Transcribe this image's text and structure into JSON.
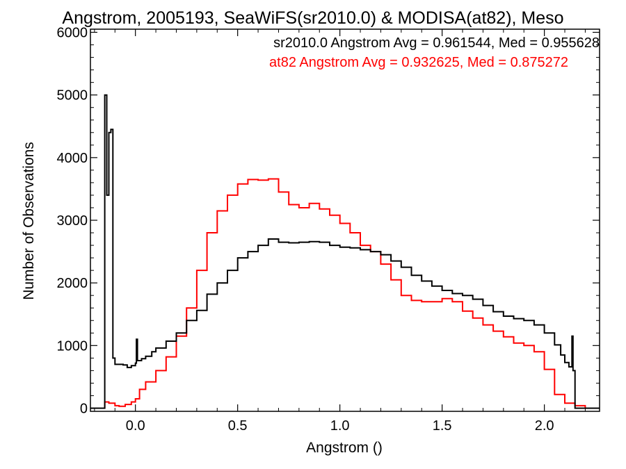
{
  "chart_data": {
    "type": "line",
    "title": "Angstrom, 2005193, SeaWiFS(sr2010.0) & MODISA(at82), Meso",
    "xlabel": "Angstrom ()",
    "ylabel": "Number of Observations",
    "xlim": [
      -0.22,
      2.27
    ],
    "ylim": [
      -50,
      6050
    ],
    "x_ticks": [
      "0.0",
      "0.5",
      "1.0",
      "1.5",
      "2.0"
    ],
    "x_tick_values": [
      0.0,
      0.5,
      1.0,
      1.5,
      2.0
    ],
    "y_ticks": [
      "0",
      "1000",
      "2000",
      "3000",
      "4000",
      "5000",
      "6000"
    ],
    "y_tick_values": [
      0,
      1000,
      2000,
      3000,
      4000,
      5000,
      6000
    ],
    "grid": false,
    "annotations": [
      {
        "text": "sr2010.0 Angstrom Avg = 0.961544, Med = 0.955628",
        "color": "#000000"
      },
      {
        "text": "at82 Angstrom Avg = 0.932625, Med = 0.875272",
        "color": "#ff0000"
      }
    ],
    "series": [
      {
        "color": "#000000",
        "points": [
          [
            -0.22,
            0
          ],
          [
            -0.15,
            0
          ],
          [
            -0.15,
            5000
          ],
          [
            -0.14,
            3400
          ],
          [
            -0.13,
            4400
          ],
          [
            -0.12,
            4450
          ],
          [
            -0.11,
            800
          ],
          [
            -0.1,
            700
          ],
          [
            -0.08,
            700
          ],
          [
            -0.06,
            690
          ],
          [
            -0.04,
            650
          ],
          [
            -0.02,
            680
          ],
          [
            0.0,
            720
          ],
          [
            0.005,
            1100
          ],
          [
            0.01,
            760
          ],
          [
            0.03,
            790
          ],
          [
            0.05,
            830
          ],
          [
            0.08,
            900
          ],
          [
            0.1,
            960
          ],
          [
            0.15,
            1070
          ],
          [
            0.2,
            1200
          ],
          [
            0.25,
            1400
          ],
          [
            0.3,
            1560
          ],
          [
            0.35,
            1820
          ],
          [
            0.4,
            2000
          ],
          [
            0.45,
            2200
          ],
          [
            0.5,
            2400
          ],
          [
            0.55,
            2500
          ],
          [
            0.6,
            2600
          ],
          [
            0.65,
            2700
          ],
          [
            0.7,
            2650
          ],
          [
            0.75,
            2640
          ],
          [
            0.8,
            2650
          ],
          [
            0.85,
            2660
          ],
          [
            0.9,
            2650
          ],
          [
            0.95,
            2600
          ],
          [
            1.0,
            2570
          ],
          [
            1.05,
            2560
          ],
          [
            1.1,
            2530
          ],
          [
            1.15,
            2500
          ],
          [
            1.2,
            2450
          ],
          [
            1.25,
            2350
          ],
          [
            1.3,
            2250
          ],
          [
            1.35,
            2120
          ],
          [
            1.4,
            2030
          ],
          [
            1.45,
            1950
          ],
          [
            1.5,
            1880
          ],
          [
            1.55,
            1830
          ],
          [
            1.6,
            1800
          ],
          [
            1.65,
            1740
          ],
          [
            1.7,
            1640
          ],
          [
            1.75,
            1540
          ],
          [
            1.8,
            1470
          ],
          [
            1.85,
            1430
          ],
          [
            1.9,
            1400
          ],
          [
            1.95,
            1330
          ],
          [
            2.0,
            1200
          ],
          [
            2.05,
            1010
          ],
          [
            2.08,
            850
          ],
          [
            2.1,
            730
          ],
          [
            2.12,
            660
          ],
          [
            2.135,
            1150
          ],
          [
            2.14,
            600
          ],
          [
            2.15,
            0
          ],
          [
            2.27,
            0
          ]
        ]
      },
      {
        "color": "#ff0000",
        "points": [
          [
            -0.22,
            0
          ],
          [
            -0.16,
            0
          ],
          [
            -0.15,
            100
          ],
          [
            -0.13,
            80
          ],
          [
            -0.1,
            40
          ],
          [
            -0.08,
            30
          ],
          [
            -0.05,
            60
          ],
          [
            -0.02,
            100
          ],
          [
            0.0,
            150
          ],
          [
            0.02,
            300
          ],
          [
            0.05,
            420
          ],
          [
            0.1,
            600
          ],
          [
            0.15,
            820
          ],
          [
            0.2,
            1150
          ],
          [
            0.25,
            1600
          ],
          [
            0.3,
            2200
          ],
          [
            0.35,
            2800
          ],
          [
            0.4,
            3150
          ],
          [
            0.45,
            3400
          ],
          [
            0.5,
            3580
          ],
          [
            0.55,
            3650
          ],
          [
            0.6,
            3640
          ],
          [
            0.65,
            3660
          ],
          [
            0.7,
            3450
          ],
          [
            0.75,
            3250
          ],
          [
            0.8,
            3200
          ],
          [
            0.85,
            3270
          ],
          [
            0.9,
            3180
          ],
          [
            0.95,
            3080
          ],
          [
            1.0,
            2950
          ],
          [
            1.05,
            2800
          ],
          [
            1.1,
            2600
          ],
          [
            1.15,
            2500
          ],
          [
            1.2,
            2300
          ],
          [
            1.25,
            2050
          ],
          [
            1.3,
            1800
          ],
          [
            1.35,
            1720
          ],
          [
            1.4,
            1700
          ],
          [
            1.45,
            1700
          ],
          [
            1.5,
            1750
          ],
          [
            1.55,
            1700
          ],
          [
            1.6,
            1550
          ],
          [
            1.65,
            1440
          ],
          [
            1.7,
            1330
          ],
          [
            1.75,
            1230
          ],
          [
            1.8,
            1140
          ],
          [
            1.85,
            1040
          ],
          [
            1.9,
            1000
          ],
          [
            1.95,
            900
          ],
          [
            2.0,
            620
          ],
          [
            2.05,
            220
          ],
          [
            2.1,
            80
          ],
          [
            2.15,
            40
          ],
          [
            2.2,
            0
          ],
          [
            2.27,
            0
          ]
        ]
      }
    ]
  }
}
